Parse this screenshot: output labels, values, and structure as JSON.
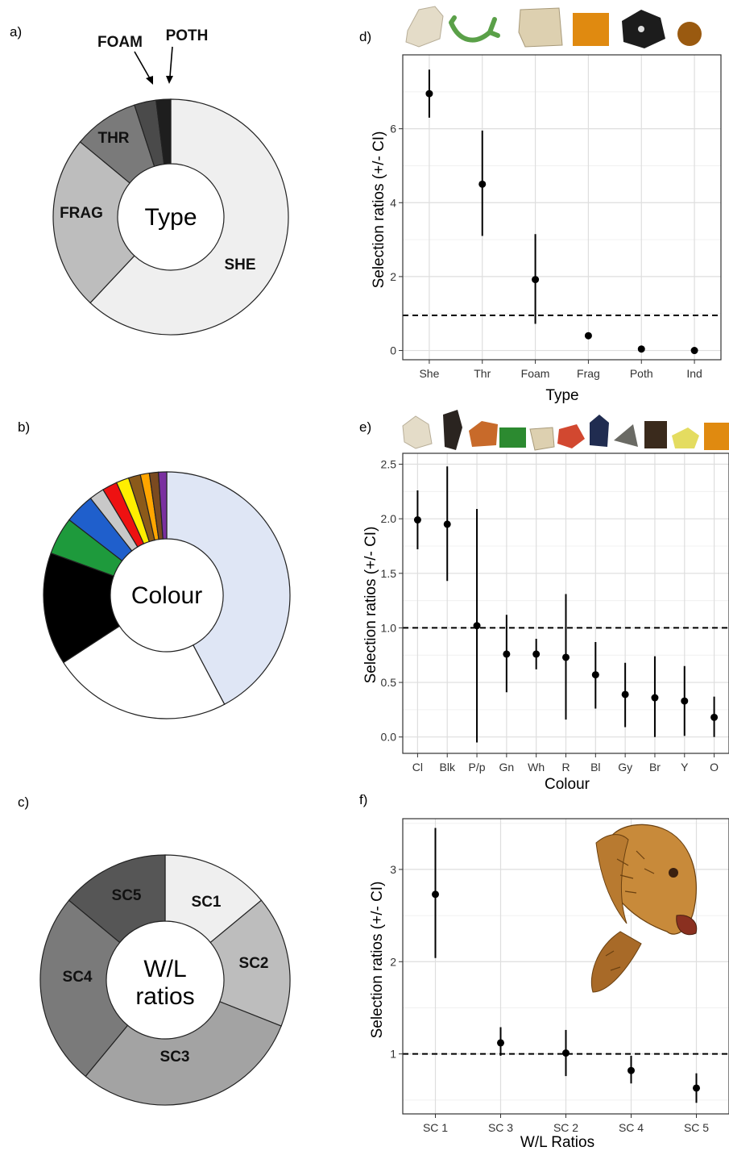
{
  "panels": {
    "a": "a)",
    "b": "b)",
    "c": "c)",
    "d": "d)",
    "e": "e)",
    "f": "f)"
  },
  "donut_type": {
    "center": "Type",
    "labels": {
      "SHE": "SHE",
      "FRAG": "FRAG",
      "THR": "THR",
      "FOAM": "FOAM",
      "POTH": "POTH"
    }
  },
  "donut_colour": {
    "center": "Colour"
  },
  "donut_wl": {
    "center_line1": "W/L",
    "center_line2": "ratios",
    "labels": {
      "SC1": "SC1",
      "SC2": "SC2",
      "SC3": "SC3",
      "SC4": "SC4",
      "SC5": "SC5"
    }
  },
  "icons": {
    "type_items": [
      "clear-fragment-icon",
      "green-thread-icon",
      "white-foam-icon",
      "orange-fragment-icon",
      "black-pellet-icon",
      "brown-pellet-icon"
    ],
    "colour_items": [
      "clear-fragment-icon",
      "black-fragment-icon",
      "brown-fragment-icon",
      "green-fragment-icon",
      "white-fragment-icon",
      "red-fragment-icon",
      "blue-fragment-icon",
      "grey-fragment-icon",
      "dark-brown-fragment-icon",
      "yellow-fragment-icon",
      "orange-fragment-icon"
    ],
    "turtle": "sea-turtle-illustration"
  },
  "chart_data": [
    {
      "type": "pie",
      "panel": "a",
      "center_label": "Type",
      "categories": [
        "SHE",
        "FRAG",
        "THR",
        "FOAM",
        "POTH"
      ],
      "values": [
        62,
        24,
        9,
        3,
        2
      ],
      "colors": [
        "#efefef",
        "#bdbdbd",
        "#7a7a7a",
        "#4a4a4a",
        "#1e1e1e"
      ]
    },
    {
      "type": "pie",
      "panel": "b",
      "center_label": "Colour",
      "values": [
        43,
        24,
        15,
        5,
        4,
        2,
        2,
        1.7,
        1.6,
        1.2,
        1.2,
        1.1
      ],
      "colors": [
        "#dfe6f5",
        "#ffffff",
        "#000000",
        "#1e9a3c",
        "#1f5fcc",
        "#c8c8c8",
        "#ee1111",
        "#ffee00",
        "#8b5a1a",
        "#ffa500",
        "#7a4a20",
        "#7a2fa0"
      ]
    },
    {
      "type": "pie",
      "panel": "c",
      "center_label": "W/L ratios",
      "categories": [
        "SC1",
        "SC2",
        "SC3",
        "SC4",
        "SC5"
      ],
      "values": [
        14,
        17,
        30,
        25,
        14
      ],
      "colors": [
        "#efefef",
        "#bdbdbd",
        "#a3a3a3",
        "#7a7a7a",
        "#565656"
      ]
    },
    {
      "type": "scatter",
      "panel": "d",
      "xlabel": "Type",
      "ylabel": "Selection ratios (+/- CI)",
      "categories": [
        "She",
        "Thr",
        "Foam",
        "Frag",
        "Poth",
        "Ind"
      ],
      "values": [
        6.95,
        4.5,
        1.92,
        0.4,
        0.04,
        0.0
      ],
      "lower": [
        6.3,
        3.1,
        0.72,
        0.4,
        0.04,
        0.0
      ],
      "upper": [
        7.6,
        5.95,
        3.15,
        0.4,
        0.04,
        0.0
      ],
      "ylim": [
        -0.25,
        8.0
      ],
      "yticks": [
        0,
        2,
        4,
        6
      ],
      "reference_line": 0.95
    },
    {
      "type": "scatter",
      "panel": "e",
      "xlabel": "Colour",
      "ylabel": "Selection ratios (+/- CI)",
      "categories": [
        "Cl",
        "Blk",
        "P/p",
        "Gn",
        "Wh",
        "R",
        "Bl",
        "Gy",
        "Br",
        "Y",
        "O"
      ],
      "values": [
        1.99,
        1.95,
        1.02,
        0.76,
        0.76,
        0.73,
        0.57,
        0.39,
        0.36,
        0.33,
        0.18
      ],
      "lower": [
        1.72,
        1.43,
        -0.05,
        0.41,
        0.62,
        0.16,
        0.26,
        0.09,
        0.0,
        0.01,
        0.0
      ],
      "upper": [
        2.26,
        2.48,
        2.09,
        1.12,
        0.9,
        1.31,
        0.87,
        0.68,
        0.74,
        0.65,
        0.37
      ],
      "ylim": [
        -0.15,
        2.6
      ],
      "yticks": [
        0.0,
        0.5,
        1.0,
        1.5,
        2.0,
        2.5
      ],
      "ytick_labels": [
        "0.0",
        "0.5",
        "1.0",
        "1.5",
        "2.0",
        "2.5"
      ],
      "reference_line": 1.0
    },
    {
      "type": "scatter",
      "panel": "f",
      "xlabel": "W/L Ratios",
      "ylabel": "Selection ratios (+/- CI)",
      "categories": [
        "SC 1",
        "SC 3",
        "SC 2",
        "SC 4",
        "SC 5"
      ],
      "values": [
        2.73,
        1.12,
        1.01,
        0.82,
        0.63
      ],
      "lower": [
        2.04,
        0.98,
        0.76,
        0.68,
        0.47
      ],
      "upper": [
        3.45,
        1.29,
        1.26,
        0.98,
        0.79
      ],
      "ylim": [
        0.35,
        3.55
      ],
      "yticks": [
        1,
        2,
        3
      ],
      "reference_line": 1.0
    }
  ]
}
